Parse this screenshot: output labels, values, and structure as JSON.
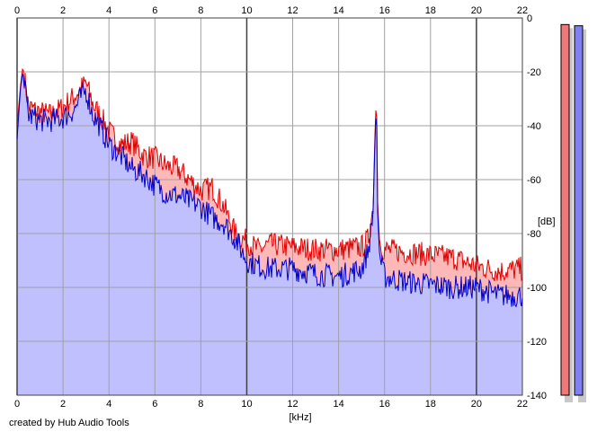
{
  "chart_data": {
    "type": "area",
    "xlabel": "[kHz]",
    "ylabel": "[dB]",
    "xlim": [
      0,
      22
    ],
    "ylim": [
      -140,
      0
    ],
    "x_ticks": [
      "0",
      "2",
      "4",
      "6",
      "8",
      "10",
      "12",
      "14",
      "16",
      "18",
      "20",
      "22"
    ],
    "y_ticks": [
      "0",
      "-20",
      "-40",
      "-60",
      "-80",
      "-100",
      "-120",
      "-140"
    ],
    "grid": true,
    "series": [
      {
        "color": "#e00000",
        "fill": "#ffb8b8",
        "x": [
          0,
          0.15,
          0.25,
          0.5,
          1,
          1.5,
          2,
          2.5,
          2.8,
          3,
          3.3,
          3.6,
          4,
          4.5,
          5,
          5.5,
          6,
          6.5,
          7,
          7.5,
          8,
          8.5,
          9,
          9.5,
          10,
          10.5,
          11,
          12,
          13,
          14,
          15,
          15.3,
          15.5,
          15.6,
          15.65,
          15.7,
          15.8,
          16,
          17,
          18,
          19,
          20,
          21,
          22
        ],
        "values": [
          -40,
          -25,
          -18,
          -33,
          -35,
          -36,
          -33,
          -29,
          -26,
          -24,
          -32,
          -36,
          -42,
          -47,
          -46,
          -51,
          -52,
          -55,
          -56,
          -60,
          -64,
          -63,
          -70,
          -80,
          -83,
          -86,
          -84,
          -85,
          -86,
          -86,
          -85,
          -82,
          -70,
          -37,
          -30,
          -70,
          -84,
          -86,
          -87,
          -88,
          -89,
          -92,
          -94,
          -93
        ]
      },
      {
        "color": "#0000cc",
        "fill": "#c0c0ff",
        "x": [
          0,
          0.15,
          0.25,
          0.5,
          1,
          1.5,
          2,
          2.5,
          2.8,
          3,
          3.3,
          3.6,
          4,
          4.5,
          5,
          5.5,
          6,
          6.5,
          7,
          7.5,
          8,
          8.5,
          9,
          9.5,
          10,
          10.5,
          11,
          12,
          13,
          14,
          15,
          15.3,
          15.5,
          15.6,
          15.65,
          15.7,
          15.8,
          16,
          17,
          18,
          19,
          20,
          21,
          22
        ],
        "values": [
          -45,
          -26,
          -20,
          -36,
          -38,
          -38,
          -37,
          -34,
          -29,
          -27,
          -36,
          -40,
          -47,
          -51,
          -56,
          -58,
          -62,
          -65,
          -66,
          -68,
          -70,
          -74,
          -76,
          -82,
          -90,
          -92,
          -93,
          -93,
          -95,
          -96,
          -93,
          -86,
          -72,
          -40,
          -33,
          -74,
          -89,
          -96,
          -98,
          -99,
          -100,
          -100,
          -103,
          -103
        ]
      }
    ],
    "level_meters": [
      {
        "color": "#f07878",
        "level_db": -1.5
      },
      {
        "color": "#8080f0",
        "level_db": -3.0
      }
    ]
  },
  "credit": "created by Hub Audio Tools"
}
